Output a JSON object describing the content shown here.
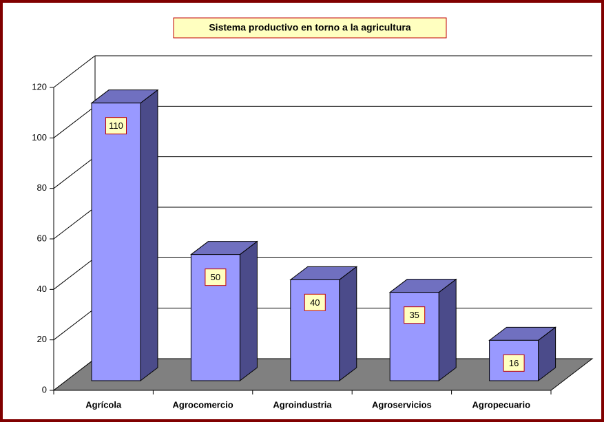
{
  "chart_data": {
    "type": "bar3d",
    "title": "Sistema productivo en torno a la agricultura",
    "categories": [
      "Agrícola",
      "Agrocomercio",
      "Agroindustria",
      "Agroservicios",
      "Agropecuario"
    ],
    "values": [
      110,
      50,
      40,
      35,
      16
    ],
    "color": "#9999ff",
    "ylim": [
      0,
      120
    ],
    "yticks": [
      0,
      20,
      40,
      60,
      80,
      100,
      120
    ],
    "grid": true
  }
}
